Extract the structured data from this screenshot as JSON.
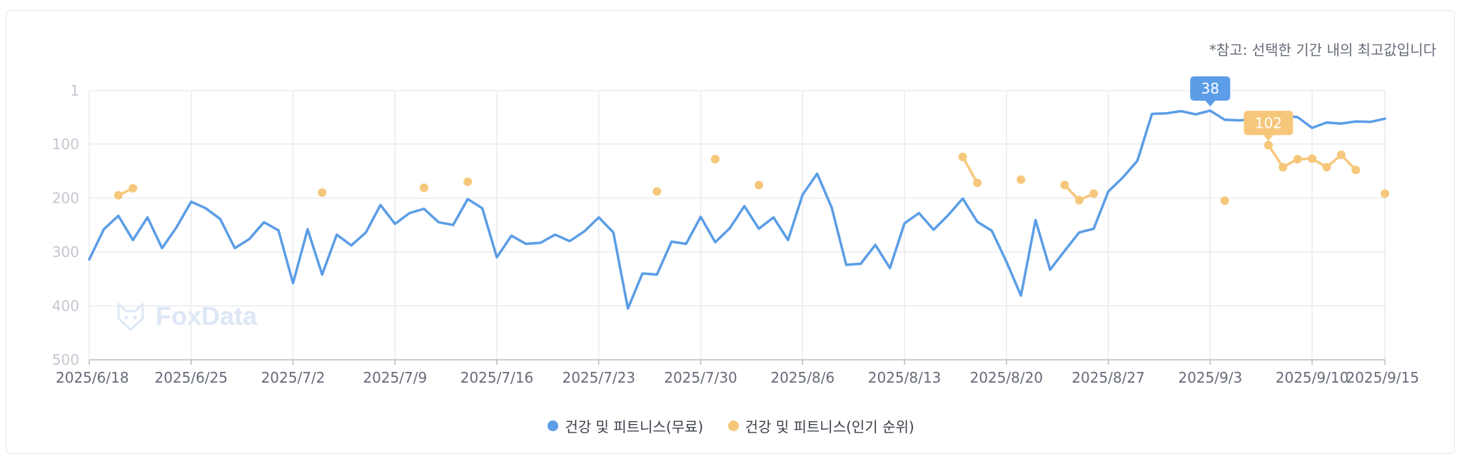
{
  "note": "*참고: 선택한 기간 내의 최고값입니다",
  "watermark": "FoxData",
  "legend": [
    {
      "label": "건강 및 피트니스(무료)",
      "color": "#5b9de6"
    },
    {
      "label": "건강 및 피트니스(인기 순위)",
      "color": "#f6c77b"
    }
  ],
  "chart_data": {
    "type": "line",
    "title": "",
    "xlabel": "",
    "ylabel": "",
    "y_inverted": true,
    "ylim": [
      1,
      500
    ],
    "yticks": [
      "1",
      "100",
      "200",
      "300",
      "400",
      "500"
    ],
    "yticks_values": [
      1,
      100,
      200,
      300,
      400,
      500
    ],
    "xrange": [
      "2025-06-18",
      "2025-09-15"
    ],
    "xticks": [
      "2025/6/18",
      "2025/6/25",
      "2025/7/2",
      "2025/7/9",
      "2025/7/16",
      "2025/7/23",
      "2025/7/30",
      "2025/8/6",
      "2025/8/13",
      "2025/8/20",
      "2025/8/27",
      "2025/9/3",
      "2025/9/10",
      "2025/9/15"
    ],
    "xticks_dates": [
      "2025-06-18",
      "2025-06-25",
      "2025-07-02",
      "2025-07-09",
      "2025-07-16",
      "2025-07-23",
      "2025-07-30",
      "2025-08-06",
      "2025-08-13",
      "2025-08-20",
      "2025-08-27",
      "2025-09-03",
      "2025-09-10",
      "2025-09-15"
    ],
    "grid": true,
    "legend_position": "bottom",
    "series": [
      {
        "name": "건강 및 피트니스(무료)",
        "color": "#5b9de6",
        "points": [
          [
            "2025-06-18",
            314
          ],
          [
            "2025-06-19",
            258
          ],
          [
            "2025-06-20",
            233
          ],
          [
            "2025-06-21",
            278
          ],
          [
            "2025-06-22",
            236
          ],
          [
            "2025-06-23",
            293
          ],
          [
            "2025-06-24",
            254
          ],
          [
            "2025-06-25",
            207
          ],
          [
            "2025-06-26",
            219
          ],
          [
            "2025-06-27",
            239
          ],
          [
            "2025-06-28",
            293
          ],
          [
            "2025-06-29",
            276
          ],
          [
            "2025-06-30",
            245
          ],
          [
            "2025-07-01",
            260
          ],
          [
            "2025-07-02",
            358
          ],
          [
            "2025-07-03",
            258
          ],
          [
            "2025-07-04",
            342
          ],
          [
            "2025-07-05",
            268
          ],
          [
            "2025-07-06",
            288
          ],
          [
            "2025-07-07",
            264
          ],
          [
            "2025-07-08",
            213
          ],
          [
            "2025-07-09",
            248
          ],
          [
            "2025-07-10",
            228
          ],
          [
            "2025-07-11",
            220
          ],
          [
            "2025-07-12",
            245
          ],
          [
            "2025-07-13",
            250
          ],
          [
            "2025-07-14",
            202
          ],
          [
            "2025-07-15",
            219
          ],
          [
            "2025-07-16",
            310
          ],
          [
            "2025-07-17",
            270
          ],
          [
            "2025-07-18",
            285
          ],
          [
            "2025-07-19",
            283
          ],
          [
            "2025-07-20",
            268
          ],
          [
            "2025-07-21",
            280
          ],
          [
            "2025-07-22",
            262
          ],
          [
            "2025-07-23",
            236
          ],
          [
            "2025-07-24",
            264
          ],
          [
            "2025-07-25",
            405
          ],
          [
            "2025-07-26",
            340
          ],
          [
            "2025-07-27",
            342
          ],
          [
            "2025-07-28",
            281
          ],
          [
            "2025-07-29",
            285
          ],
          [
            "2025-07-30",
            235
          ],
          [
            "2025-07-31",
            282
          ],
          [
            "2025-08-01",
            256
          ],
          [
            "2025-08-02",
            215
          ],
          [
            "2025-08-03",
            257
          ],
          [
            "2025-08-04",
            236
          ],
          [
            "2025-08-05",
            278
          ],
          [
            "2025-08-06",
            194
          ],
          [
            "2025-08-07",
            155
          ],
          [
            "2025-08-08",
            218
          ],
          [
            "2025-08-09",
            324
          ],
          [
            "2025-08-10",
            322
          ],
          [
            "2025-08-11",
            287
          ],
          [
            "2025-08-12",
            330
          ],
          [
            "2025-08-13",
            247
          ],
          [
            "2025-08-14",
            228
          ],
          [
            "2025-08-15",
            259
          ],
          [
            "2025-08-16",
            232
          ],
          [
            "2025-08-17",
            201
          ],
          [
            "2025-08-18",
            244
          ],
          [
            "2025-08-19",
            261
          ],
          [
            "2025-08-20",
            318
          ],
          [
            "2025-08-21",
            381
          ],
          [
            "2025-08-22",
            241
          ],
          [
            "2025-08-23",
            333
          ],
          [
            "2025-08-24",
            298
          ],
          [
            "2025-08-25",
            264
          ],
          [
            "2025-08-26",
            257
          ],
          [
            "2025-08-27",
            188
          ],
          [
            "2025-08-28",
            162
          ],
          [
            "2025-08-29",
            131
          ],
          [
            "2025-08-30",
            44
          ],
          [
            "2025-08-31",
            43
          ],
          [
            "2025-09-01",
            39
          ],
          [
            "2025-09-02",
            45
          ],
          [
            "2025-09-03",
            38
          ],
          [
            "2025-09-04",
            55
          ],
          [
            "2025-09-05",
            56
          ],
          [
            "2025-09-06",
            54
          ],
          [
            "2025-09-07",
            51
          ],
          [
            "2025-09-08",
            48
          ],
          [
            "2025-09-09",
            50
          ],
          [
            "2025-09-10",
            70
          ],
          [
            "2025-09-11",
            60
          ],
          [
            "2025-09-12",
            62
          ],
          [
            "2025-09-13",
            58
          ],
          [
            "2025-09-14",
            59
          ],
          [
            "2025-09-15",
            53
          ]
        ]
      },
      {
        "name": "건강 및 피트니스(인기 순위)",
        "color": "#f6c77b",
        "points": [
          [
            "2025-06-20",
            195
          ],
          [
            "2025-06-21",
            182
          ],
          null,
          [
            "2025-07-04",
            190
          ],
          null,
          [
            "2025-07-11",
            181
          ],
          null,
          [
            "2025-07-14",
            170
          ],
          null,
          [
            "2025-07-27",
            188
          ],
          null,
          [
            "2025-07-31",
            128
          ],
          null,
          [
            "2025-08-03",
            176
          ],
          null,
          [
            "2025-08-17",
            124
          ],
          [
            "2025-08-18",
            172
          ],
          null,
          [
            "2025-08-21",
            166
          ],
          null,
          [
            "2025-08-24",
            176
          ],
          [
            "2025-08-25",
            204
          ],
          [
            "2025-08-26",
            192
          ],
          null,
          [
            "2025-09-04",
            205
          ],
          null,
          [
            "2025-09-07",
            102
          ],
          [
            "2025-09-08",
            143
          ],
          [
            "2025-09-09",
            128
          ],
          [
            "2025-09-10",
            127
          ],
          [
            "2025-09-11",
            143
          ],
          [
            "2025-09-12",
            120
          ],
          [
            "2025-09-13",
            148
          ],
          null,
          [
            "2025-09-15",
            192
          ]
        ]
      }
    ],
    "annotations": [
      {
        "series": 0,
        "x": "2025-09-03",
        "y": 38,
        "label": "38"
      },
      {
        "series": 1,
        "x": "2025-09-07",
        "y": 102,
        "label": "102"
      }
    ]
  }
}
